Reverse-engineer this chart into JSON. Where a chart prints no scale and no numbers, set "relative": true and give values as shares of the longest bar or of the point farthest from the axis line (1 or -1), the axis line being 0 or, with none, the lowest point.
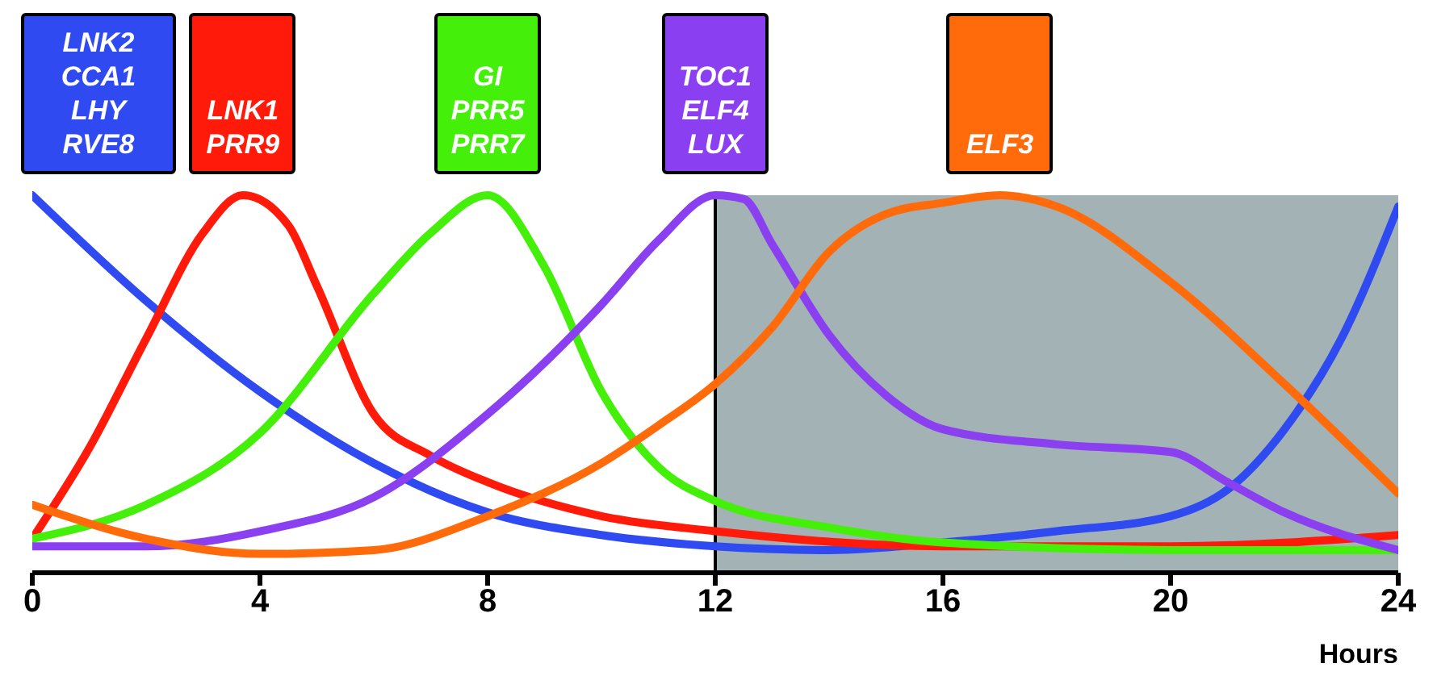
{
  "chart_data": {
    "type": "line",
    "relative": true,
    "xlabel": "Hours",
    "xlim": [
      0,
      24
    ],
    "xticks": [
      0,
      4,
      8,
      12,
      16,
      20,
      24
    ],
    "grid": false,
    "legend": "top",
    "marker": "none",
    "line_style": "solid",
    "bands": [
      {
        "axis": "x",
        "from": 12,
        "to": 24,
        "color": "#a3b2b5"
      }
    ],
    "ref_lines": [
      {
        "axis": "x",
        "value": 12,
        "color": "#000000"
      }
    ],
    "series": [
      {
        "name": "LNK2\nCCA1\nLHY\nRVE8",
        "color": "#2f4af0",
        "x": [
          0,
          2,
          4,
          6,
          8,
          10,
          12,
          14,
          16,
          18,
          20,
          21,
          22,
          23,
          24
        ],
        "values": [
          1.0,
          0.72,
          0.48,
          0.29,
          0.16,
          0.1,
          0.07,
          0.06,
          0.08,
          0.11,
          0.15,
          0.22,
          0.38,
          0.62,
          0.97
        ]
      },
      {
        "name": "LNK1\nPRR9",
        "color": "#ff1a0a",
        "x": [
          0,
          1,
          2,
          3,
          3.7,
          4.5,
          5,
          6,
          7,
          8,
          10,
          12,
          16,
          20,
          24
        ],
        "values": [
          0.09,
          0.33,
          0.62,
          0.9,
          1.0,
          0.92,
          0.76,
          0.42,
          0.31,
          0.24,
          0.15,
          0.11,
          0.07,
          0.07,
          0.1
        ]
      },
      {
        "name": "GI\nPRR5\nPRR7",
        "color": "#44f00a",
        "x": [
          0,
          2,
          4,
          6,
          7,
          8,
          9,
          10,
          11,
          12,
          14,
          16,
          20,
          24
        ],
        "values": [
          0.09,
          0.18,
          0.37,
          0.74,
          0.9,
          1.0,
          0.81,
          0.48,
          0.28,
          0.19,
          0.12,
          0.08,
          0.06,
          0.06
        ]
      },
      {
        "name": "TOC1\nELF4\nLUX",
        "color": "#8a3ff0",
        "x": [
          0,
          2,
          4,
          6,
          8,
          10,
          11,
          12,
          12.5,
          13,
          14,
          15,
          16,
          18,
          20,
          21,
          22,
          24
        ],
        "values": [
          0.07,
          0.07,
          0.11,
          0.2,
          0.42,
          0.71,
          0.88,
          1.0,
          0.99,
          0.87,
          0.63,
          0.47,
          0.38,
          0.34,
          0.32,
          0.24,
          0.16,
          0.06
        ]
      },
      {
        "name": "ELF3",
        "color": "#ff6a0a",
        "x": [
          0,
          2,
          4,
          6,
          8,
          10,
          11,
          12,
          13,
          14,
          15,
          16,
          17,
          18,
          20,
          22,
          24
        ],
        "values": [
          0.18,
          0.09,
          0.05,
          0.06,
          0.15,
          0.29,
          0.39,
          0.5,
          0.65,
          0.85,
          0.95,
          0.98,
          1.0,
          0.97,
          0.77,
          0.5,
          0.21
        ]
      }
    ]
  }
}
